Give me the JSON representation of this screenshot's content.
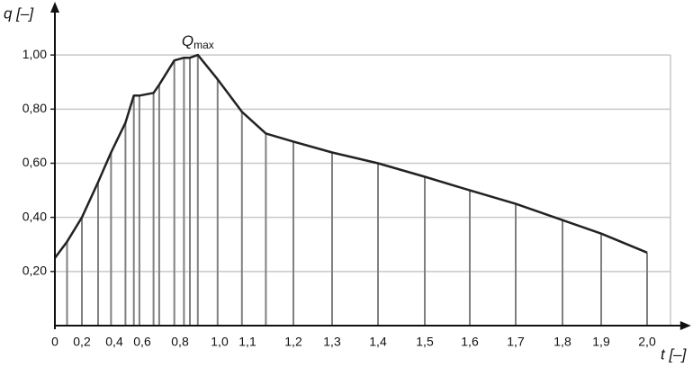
{
  "chart_data": {
    "type": "line",
    "y_label": "q [–]",
    "x_label": "t [–]",
    "annotation": {
      "text": "Q",
      "subscript": "max"
    },
    "x": [
      0,
      0.09,
      0.2,
      0.3,
      0.38,
      0.48,
      0.54,
      0.58,
      0.66,
      0.69,
      0.77,
      0.82,
      0.85,
      0.89,
      0.99,
      1.08,
      1.14,
      1.2,
      1.3,
      1.4,
      1.5,
      1.6,
      1.7,
      1.8,
      1.9,
      2.0
    ],
    "series": [
      {
        "color": "#222222",
        "values": [
          0.25,
          0.31,
          0.4,
          0.53,
          0.64,
          0.75,
          0.85,
          0.85,
          0.86,
          0.89,
          0.98,
          0.99,
          0.99,
          1.0,
          0.91,
          0.79,
          0.71,
          0.68,
          0.64,
          0.6,
          0.55,
          0.5,
          0.45,
          0.39,
          0.34,
          0.27
        ]
      }
    ],
    "drop_line_color": "#808080",
    "xlim": [
      0,
      2.08
    ],
    "ylim": [
      0,
      1.17
    ],
    "xticks": [
      0,
      {
        "value": 0.2,
        "label": "0,2"
      },
      {
        "value": 0.4,
        "label": "0,4"
      },
      {
        "value": 0.6,
        "label": "0,6"
      },
      {
        "value": 0.8,
        "label": "0,8"
      },
      {
        "value": 1.0,
        "label": "1,0"
      },
      {
        "value": 1.1,
        "label": "1,1"
      },
      {
        "value": 1.2,
        "label": "1,2"
      },
      {
        "value": 1.3,
        "label": "1,3"
      },
      {
        "value": 1.4,
        "label": "1,4"
      },
      {
        "value": 1.5,
        "label": "1,5"
      },
      {
        "value": 1.6,
        "label": "1,6"
      },
      {
        "value": 1.7,
        "label": "1,7"
      },
      {
        "value": 1.8,
        "label": "1,8"
      },
      {
        "value": 1.9,
        "label": "1,9"
      },
      {
        "value": 2.0,
        "label": "2,0"
      }
    ],
    "yticks": [
      {
        "value": 0.2,
        "label": "0,20"
      },
      {
        "value": 0.4,
        "label": "0,40"
      },
      {
        "value": 0.6,
        "label": "0,60"
      },
      {
        "value": 0.8,
        "label": "0,80"
      },
      {
        "value": 1.0,
        "label": "1,00"
      }
    ],
    "grid": true
  }
}
